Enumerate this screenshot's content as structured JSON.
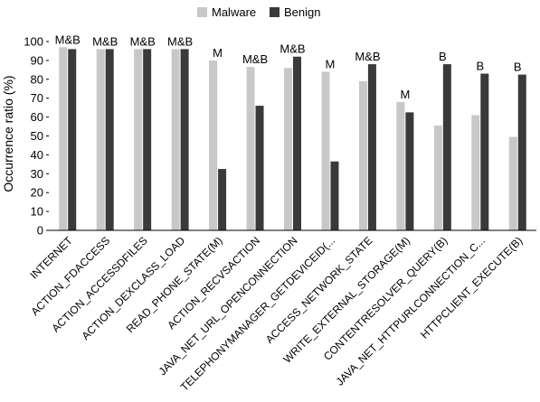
{
  "chart_data": {
    "type": "bar",
    "ylabel": "Occurrence ratio (%)",
    "xlabel": "",
    "ylim": [
      0,
      100
    ],
    "yticks": [
      0,
      10,
      20,
      30,
      40,
      50,
      60,
      70,
      80,
      90,
      100
    ],
    "legend": {
      "placement": "top"
    },
    "categories": [
      "INTERNET",
      "ACTION_FDACCESS",
      "ACTION_ACCESSDFILES",
      "ACTION_DEXCLASS_LOAD",
      "READ_PHONE_STATE(M)",
      "ACTION_RECVSACTION",
      "JAVA_NET_URL_OPENCONNECTION",
      "TELEPHONYMANAGER_GETDEVICEID(...",
      "ACCESS_NETWORK_STATE",
      "WRITE_EXTERNAL_STORAGE(M)",
      "CONTENTRESOLVER_QUERY(B)",
      "JAVA_NET_HTTPURLCONNECTION_C...",
      "HTTPCLIENT_EXECUTE(B)"
    ],
    "series": [
      {
        "name": "Malware",
        "color": "#c8c8c8",
        "values": [
          97,
          96,
          96,
          96,
          90,
          86.5,
          86,
          84,
          79,
          68,
          55.5,
          61,
          49.5
        ]
      },
      {
        "name": "Benign",
        "color": "#3a3a3a",
        "values": [
          96,
          96,
          96,
          96,
          32.5,
          66,
          92,
          36.5,
          88,
          62.5,
          88,
          83,
          82.5
        ]
      }
    ],
    "annotations": [
      "M&B",
      "M&B",
      "M&B",
      "M&B",
      "M",
      "M&B",
      "M&B",
      "M",
      "M&B",
      "M",
      "B",
      "B",
      "B"
    ]
  }
}
